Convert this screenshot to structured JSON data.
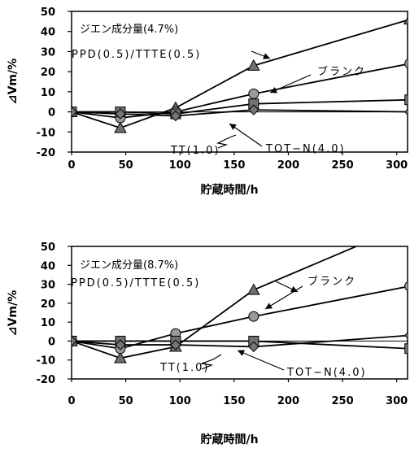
{
  "chart_data": [
    {
      "type": "line",
      "title": "",
      "xlabel": "貯蔵時間/h",
      "ylabel": "⊿Vm/%",
      "xlim": [
        0,
        310
      ],
      "ylim": [
        -20,
        50
      ],
      "xticks": [
        0,
        50,
        100,
        150,
        200,
        250,
        300
      ],
      "yticks": [
        -20,
        -10,
        0,
        10,
        20,
        30,
        40,
        50
      ],
      "grid": false,
      "legend": "none",
      "inset_text": "ジエン成分量(4.7%)",
      "series": [
        {
          "name": "PPD(0.5)/TTTE(0.5)",
          "marker": "triangle",
          "color": "#6f6f6f",
          "line_color": "#000000",
          "x": [
            0,
            45,
            96,
            168,
            312
          ],
          "y": [
            0,
            -8,
            2,
            23,
            46
          ]
        },
        {
          "name": "ブランク",
          "marker": "circle",
          "color": "#9a9a9a",
          "line_color": "#000000",
          "x": [
            0,
            45,
            96,
            168,
            312
          ],
          "y": [
            0,
            -3,
            0,
            9,
            24
          ]
        },
        {
          "name": "TT(1.0)",
          "marker": "square",
          "color": "#707070",
          "line_color": "#000000",
          "x": [
            0,
            45,
            96,
            168,
            312
          ],
          "y": [
            0,
            0,
            -1,
            4,
            6
          ]
        },
        {
          "name": "TOT−N(4.0)",
          "marker": "diamond",
          "color": "#777777",
          "line_color": "#000000",
          "x": [
            0,
            45,
            96,
            168,
            312
          ],
          "y": [
            0,
            -1,
            -2,
            1,
            0
          ]
        }
      ],
      "annotations": [
        {
          "text": "PPD(0.5)/TTTE(0.5)",
          "target": "PPD(0.5)/TTTE(0.5)"
        },
        {
          "text": "ブランク",
          "target": "ブランク"
        },
        {
          "text": "TT(1.0)",
          "target": "TT(1.0)"
        },
        {
          "text": "TOT−N(4.0)",
          "target": "TOT−N(4.0)"
        }
      ]
    },
    {
      "type": "line",
      "title": "",
      "xlabel": "貯蔵時間/h",
      "ylabel": "⊿Vm/%",
      "xlim": [
        0,
        310
      ],
      "ylim": [
        -20,
        50
      ],
      "xticks": [
        0,
        50,
        100,
        150,
        200,
        250,
        300
      ],
      "yticks": [
        -20,
        -10,
        0,
        10,
        20,
        30,
        40,
        50
      ],
      "grid": false,
      "legend": "none",
      "inset_text": "ジエン成分量(8.7%)",
      "series": [
        {
          "name": "PPD(0.5)/TTTE(0.5)",
          "marker": "triangle",
          "color": "#6f6f6f",
          "line_color": "#000000",
          "x": [
            0,
            45,
            96,
            168,
            312
          ],
          "y": [
            0,
            -9,
            -3,
            27,
            62
          ]
        },
        {
          "name": "ブランク",
          "marker": "circle",
          "color": "#9a9a9a",
          "line_color": "#000000",
          "x": [
            0,
            45,
            96,
            168,
            312
          ],
          "y": [
            0,
            -4,
            4,
            13,
            29
          ]
        },
        {
          "name": "TT(1.0)",
          "marker": "square",
          "color": "#707070",
          "line_color": "#000000",
          "x": [
            0,
            45,
            96,
            168,
            312
          ],
          "y": [
            0,
            0,
            0,
            0,
            -4
          ]
        },
        {
          "name": "TOT−N(4.0)",
          "marker": "diamond",
          "color": "#777777",
          "line_color": "#000000",
          "x": [
            0,
            45,
            96,
            168,
            312
          ],
          "y": [
            0,
            -2,
            -2,
            -3,
            3
          ]
        }
      ],
      "annotations": [
        {
          "text": "PPD(0.5)/TTTE(0.5)",
          "target": "PPD(0.5)/TTTE(0.5)"
        },
        {
          "text": "ブランク",
          "target": "ブランク"
        },
        {
          "text": "TT(1.0)",
          "target": "TT(1.0)"
        },
        {
          "text": "TOT−N(4.0)",
          "target": "TOT−N(4.0)"
        }
      ]
    }
  ]
}
